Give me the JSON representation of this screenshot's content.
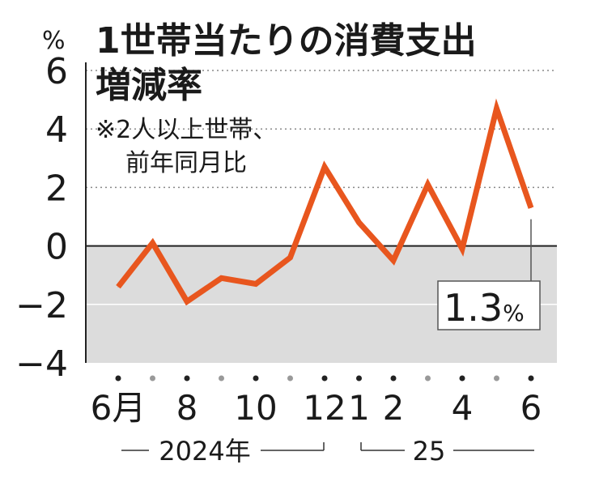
{
  "chart_data": {
    "type": "line",
    "title_line1": "1世帯当たりの消費支出",
    "title_line2": "増減率",
    "note_line1": "※2人以上世帯、",
    "note_line2": "前年同月比",
    "y_unit": "%",
    "ylim": [
      -4,
      6
    ],
    "y_ticks": [
      "6",
      "4",
      "2",
      "0",
      "−2",
      "−4"
    ],
    "y_tick_values": [
      6,
      4,
      2,
      0,
      -2,
      -4
    ],
    "x_months": [
      "2024-06",
      "2024-07",
      "2024-08",
      "2024-09",
      "2024-10",
      "2024-11",
      "2024-12",
      "2025-01",
      "2025-02",
      "2025-03",
      "2025-04",
      "2025-05",
      "2025-06"
    ],
    "x_tick_labels": [
      "6月",
      "",
      "8",
      "",
      "10",
      "",
      "12",
      "1",
      "2",
      "",
      "4",
      "",
      "6"
    ],
    "year_labels": [
      "2024年",
      "25"
    ],
    "values": [
      -1.4,
      0.1,
      -1.9,
      -1.1,
      -1.3,
      -0.4,
      2.7,
      0.8,
      -0.5,
      2.1,
      -0.1,
      4.7,
      1.3
    ],
    "callout": {
      "value": "1.3",
      "unit": "%"
    },
    "line_color": "#e8561e",
    "negative_band_color": "#dcdcdc",
    "grid": "dotted-positive"
  }
}
